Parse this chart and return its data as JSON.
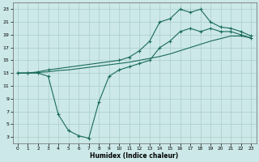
{
  "xlabel": "Humidex (Indice chaleur)",
  "bg_color": "#cce8e8",
  "grid_color": "#aacccc",
  "line_color": "#1a6b5a",
  "xlim": [
    -0.5,
    23.5
  ],
  "ylim": [
    2,
    24
  ],
  "xticks": [
    0,
    1,
    2,
    3,
    4,
    5,
    6,
    7,
    8,
    9,
    10,
    11,
    12,
    13,
    14,
    15,
    16,
    17,
    18,
    19,
    20,
    21,
    22,
    23
  ],
  "yticks": [
    3,
    5,
    7,
    9,
    11,
    13,
    15,
    17,
    19,
    21,
    23
  ],
  "series1_x": [
    0,
    1,
    2,
    3,
    4,
    5,
    6,
    7,
    8,
    9,
    10,
    11,
    12,
    13,
    14,
    15,
    16,
    17,
    18,
    19,
    20,
    21,
    22,
    23
  ],
  "series1_y": [
    13,
    13,
    13,
    12.5,
    6.5,
    4.0,
    3.2,
    2.8,
    8.5,
    12.5,
    13.5,
    14,
    14.5,
    15,
    17,
    18,
    19.5,
    20,
    19.5,
    20,
    19.5,
    19.5,
    19,
    18.5
  ],
  "series2_x": [
    0,
    1,
    2,
    3,
    10,
    11,
    12,
    13,
    14,
    15,
    16,
    17,
    18,
    19,
    20,
    21,
    22,
    23
  ],
  "series2_y": [
    13,
    13,
    13.2,
    13.5,
    15,
    15.5,
    16.5,
    18,
    21,
    21.5,
    23,
    22.5,
    23,
    21,
    20.2,
    20,
    19.5,
    18.8
  ],
  "series3_x": [
    0,
    1,
    2,
    3,
    4,
    5,
    6,
    7,
    8,
    9,
    10,
    11,
    12,
    13,
    14,
    15,
    16,
    17,
    18,
    19,
    20,
    21,
    22,
    23
  ],
  "series3_y": [
    13,
    13,
    13.1,
    13.2,
    13.4,
    13.5,
    13.7,
    13.9,
    14.1,
    14.3,
    14.5,
    14.7,
    15.0,
    15.3,
    15.6,
    16.0,
    16.5,
    17.0,
    17.5,
    18.0,
    18.4,
    18.8,
    18.8,
    18.5
  ]
}
